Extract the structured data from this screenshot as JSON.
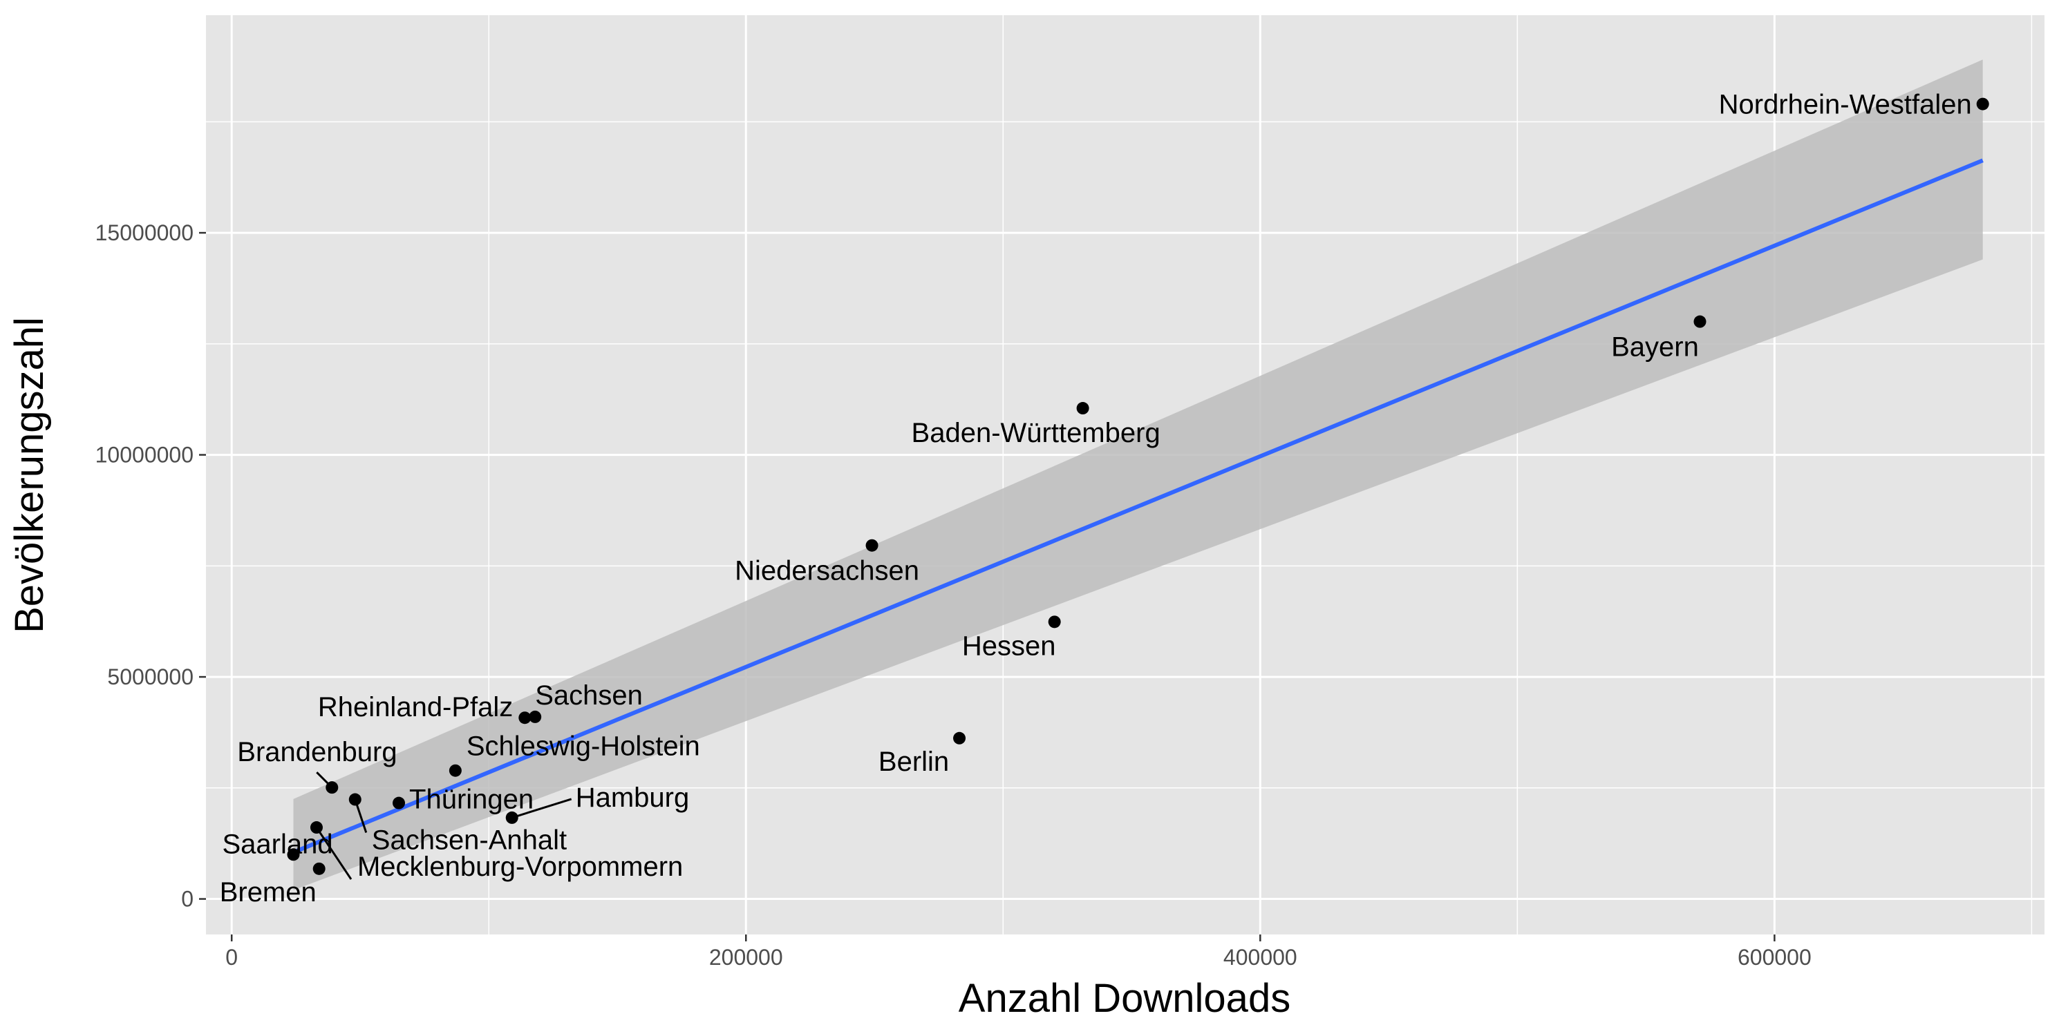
{
  "chart_data": {
    "type": "scatter",
    "title": "",
    "xlabel": "Anzahl Downloads",
    "ylabel": "Bevölkerungszahl",
    "xlim": [
      -10000,
      705000
    ],
    "ylim": [
      -800000,
      19900000
    ],
    "x_ticks": [
      {
        "value": 0,
        "label": "0"
      },
      {
        "value": 200000,
        "label": "200000"
      },
      {
        "value": 400000,
        "label": "400000"
      },
      {
        "value": 600000,
        "label": "600000"
      }
    ],
    "y_ticks": [
      {
        "value": 0,
        "label": "0"
      },
      {
        "value": 5000000,
        "label": "5000000"
      },
      {
        "value": 10000000,
        "label": "10000000"
      },
      {
        "value": 15000000,
        "label": "15000000"
      }
    ],
    "x_minor": [
      100000,
      300000,
      500000,
      700000
    ],
    "y_minor": [
      2500000,
      7500000,
      12500000,
      17500000
    ],
    "grid": true,
    "colors": {
      "panel": "#e5e5e5",
      "grid": "#ffffff",
      "point": "#000000",
      "fit_line": "#3366ff",
      "ribbon": "#bdbdbd"
    },
    "points": [
      {
        "name": "Nordrhein-Westfalen",
        "x": 681000,
        "y": 17900000
      },
      {
        "name": "Bayern",
        "x": 571000,
        "y": 13000000
      },
      {
        "name": "Baden-Württemberg",
        "x": 331000,
        "y": 11050000
      },
      {
        "name": "Niedersachsen",
        "x": 249000,
        "y": 7960000
      },
      {
        "name": "Hessen",
        "x": 320000,
        "y": 6240000
      },
      {
        "name": "Berlin",
        "x": 283000,
        "y": 3620000
      },
      {
        "name": "Sachsen",
        "x": 118000,
        "y": 4100000
      },
      {
        "name": "Rheinland-Pfalz",
        "x": 114000,
        "y": 4080000
      },
      {
        "name": "Schleswig-Holstein",
        "x": 87000,
        "y": 2890000
      },
      {
        "name": "Brandenburg",
        "x": 39000,
        "y": 2510000
      },
      {
        "name": "Thüringen",
        "x": 65000,
        "y": 2160000
      },
      {
        "name": "Sachsen-Anhalt",
        "x": 48000,
        "y": 2240000
      },
      {
        "name": "Hamburg",
        "x": 109000,
        "y": 1830000
      },
      {
        "name": "Saarland",
        "x": 24000,
        "y": 1000000
      },
      {
        "name": "Mecklenburg-Vorpommern",
        "x": 33000,
        "y": 1610000
      },
      {
        "name": "Bremen",
        "x": 34000,
        "y": 680000
      }
    ],
    "fit": {
      "method": "lm",
      "x": [
        24000,
        681000
      ],
      "y": [
        1050000,
        16630000
      ],
      "ribbon": {
        "lower": [
          200000,
          14400000
        ],
        "upper": [
          2250000,
          18900000
        ]
      }
    }
  }
}
